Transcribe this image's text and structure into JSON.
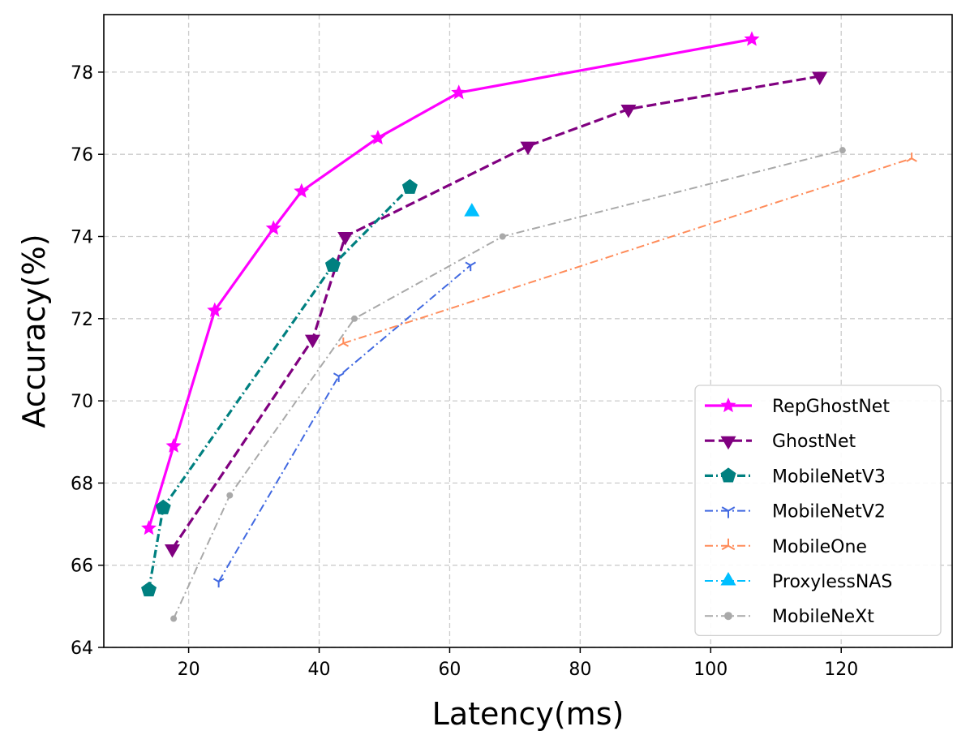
{
  "chart_data": {
    "type": "line",
    "title": "",
    "xlabel": "Latency(ms)",
    "ylabel": "Accuracy(%)",
    "xlim": [
      7,
      137
    ],
    "ylim": [
      64,
      79.4
    ],
    "xticks": [
      20,
      40,
      60,
      80,
      100,
      120
    ],
    "yticks": [
      64,
      66,
      68,
      70,
      72,
      74,
      76,
      78
    ],
    "grid": true,
    "legend_position": "bottom-right",
    "series": [
      {
        "name": "RepGhostNet",
        "color": "#ff00ff",
        "line_style": "solid",
        "marker": "star",
        "x": [
          13.9,
          17.7,
          24.0,
          33.0,
          37.3,
          49.0,
          61.4,
          106.3
        ],
        "y": [
          66.9,
          68.9,
          72.2,
          74.2,
          75.1,
          76.4,
          77.5,
          78.8
        ]
      },
      {
        "name": "GhostNet",
        "color": "#800080",
        "line_style": "dashed",
        "marker": "triangle-down",
        "x": [
          17.5,
          39.0,
          44.0,
          72.0,
          87.4,
          116.7
        ],
        "y": [
          66.4,
          71.5,
          74.0,
          76.2,
          77.1,
          77.9
        ]
      },
      {
        "name": "MobileNetV3",
        "color": "#008080",
        "line_style": "dashdot",
        "marker": "pentagon",
        "x": [
          13.9,
          16.1,
          42.1,
          53.9
        ],
        "y": [
          65.4,
          67.4,
          73.3,
          75.2
        ]
      },
      {
        "name": "MobileNetV2",
        "color": "#4169e1",
        "line_style": "dashdot",
        "marker": "tri",
        "x": [
          24.6,
          43.0,
          63.2
        ],
        "y": [
          65.6,
          70.6,
          73.3
        ]
      },
      {
        "name": "MobileOne",
        "color": "#ff8c5a",
        "line_style": "dashdot",
        "marker": "tri-down",
        "x": [
          43.7,
          130.8
        ],
        "y": [
          71.4,
          75.9
        ]
      },
      {
        "name": "ProxylessNAS",
        "color": "#00bfff",
        "line_style": "dashdot",
        "marker": "triangle-up",
        "x": [
          63.4
        ],
        "y": [
          74.6
        ]
      },
      {
        "name": "MobileNeXt",
        "color": "#a9a9a9",
        "line_style": "dashdot",
        "marker": "circle",
        "x": [
          17.7,
          26.3,
          45.4,
          68.1,
          120.2
        ],
        "y": [
          64.7,
          67.7,
          72.0,
          74.0,
          76.1
        ]
      }
    ]
  }
}
